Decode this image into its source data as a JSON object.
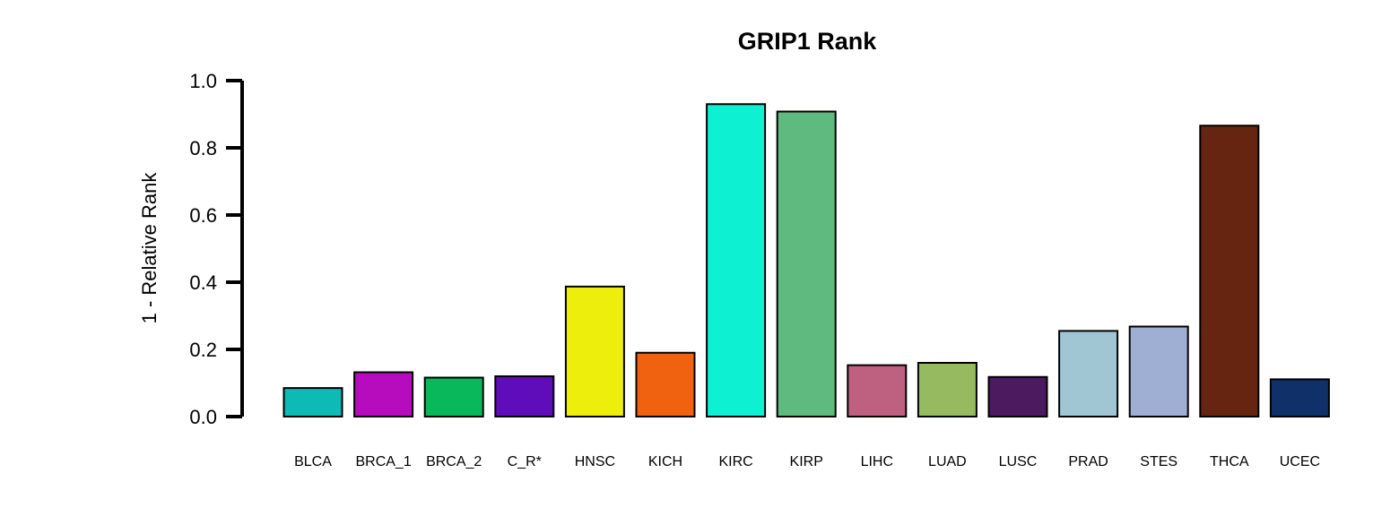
{
  "chart_data": {
    "type": "bar",
    "title": "GRIP1 Rank",
    "xlabel": "",
    "ylabel": "1 - Relative Rank",
    "ylim": [
      0,
      1
    ],
    "yticks": [
      "0.0",
      "0.2",
      "0.4",
      "0.6",
      "0.8",
      "1.0"
    ],
    "grid": false,
    "legend": "none",
    "categories": [
      "BLCA",
      "BRCA_1",
      "BRCA_2",
      "C_R*",
      "HNSC",
      "KICH",
      "KIRC",
      "KIRP",
      "LIHC",
      "LUAD",
      "LUSC",
      "PRAD",
      "STES",
      "THCA",
      "UCEC"
    ],
    "values": [
      0.085,
      0.132,
      0.116,
      0.12,
      0.387,
      0.19,
      0.93,
      0.908,
      0.153,
      0.16,
      0.118,
      0.255,
      0.268,
      0.866,
      0.111
    ],
    "colors": [
      "#0DBAB5",
      "#B60CBE",
      "#0AB85C",
      "#5F0CBA",
      "#EEEE0D",
      "#F06210",
      "#0DF0D2",
      "#5FBA80",
      "#BE6080",
      "#95BA60",
      "#4B1A5F",
      "#A0C5D3",
      "#9FAED3",
      "#652510",
      "#0F3068"
    ]
  }
}
